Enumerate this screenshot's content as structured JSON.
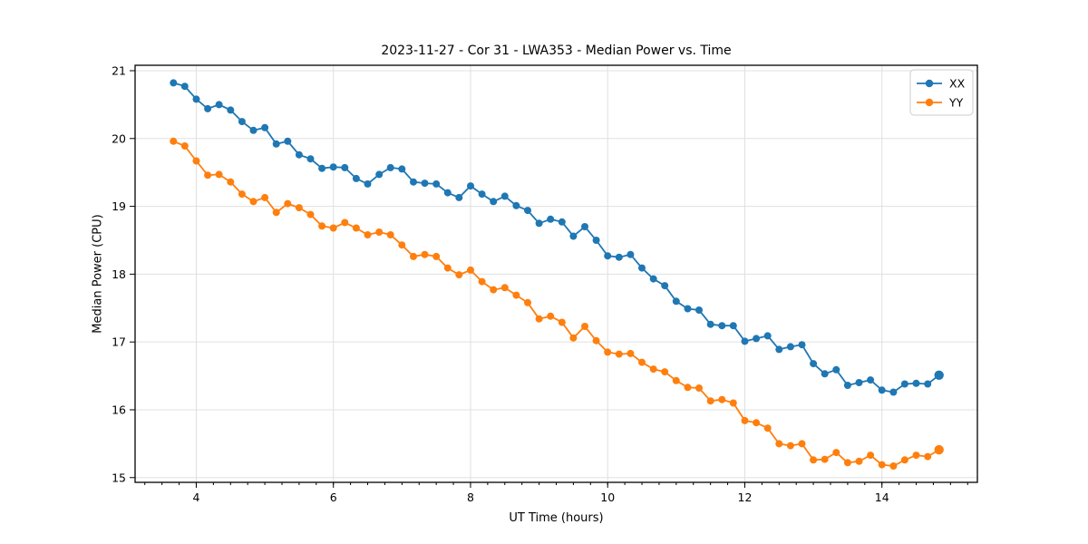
{
  "chart_data": {
    "type": "line",
    "title": "2023-11-27 - Cor 31 - LWA353 - Median Power vs. Time",
    "xlabel": "UT Time (hours)",
    "ylabel": "Median Power (CPU)",
    "xlim": [
      3.108,
      15.392
    ],
    "ylim": [
      14.93,
      21.08
    ],
    "x_major_ticks": [
      4,
      6,
      8,
      10,
      12,
      14
    ],
    "x_minor_step": 0.25,
    "y_major_ticks": [
      15,
      16,
      17,
      18,
      19,
      20,
      21
    ],
    "grid": true,
    "legend_position": "upper right",
    "legend_entries": [
      "XX",
      "YY"
    ],
    "x": [
      3.667,
      3.833,
      4,
      4.167,
      4.333,
      4.5,
      4.667,
      4.833,
      5,
      5.167,
      5.333,
      5.5,
      5.667,
      5.833,
      6,
      6.167,
      6.333,
      6.5,
      6.667,
      6.833,
      7,
      7.167,
      7.333,
      7.5,
      7.667,
      7.833,
      8,
      8.167,
      8.333,
      8.5,
      8.667,
      8.833,
      9,
      9.167,
      9.333,
      9.5,
      9.667,
      9.833,
      10,
      10.167,
      10.333,
      10.5,
      10.667,
      10.833,
      11,
      11.167,
      11.333,
      11.5,
      11.667,
      11.833,
      12,
      12.167,
      12.333,
      12.5,
      12.667,
      12.833,
      13,
      13.167,
      13.333,
      13.5,
      13.667,
      13.833,
      14,
      14.167,
      14.333,
      14.5,
      14.667,
      14.833
    ],
    "series": [
      {
        "name": "XX",
        "color": "#1f77b4",
        "values": [
          20.82,
          20.77,
          20.58,
          20.44,
          20.5,
          20.42,
          20.25,
          20.12,
          20.16,
          19.92,
          19.96,
          19.76,
          19.7,
          19.56,
          19.58,
          19.57,
          19.41,
          19.33,
          19.47,
          19.57,
          19.55,
          19.36,
          19.34,
          19.33,
          19.2,
          19.13,
          19.3,
          19.18,
          19.07,
          19.15,
          19.01,
          18.94,
          18.75,
          18.81,
          18.77,
          18.56,
          18.7,
          18.5,
          18.27,
          18.25,
          18.29,
          18.09,
          17.93,
          17.83,
          17.6,
          17.49,
          17.47,
          17.26,
          17.24,
          17.24,
          17.01,
          17.05,
          17.09,
          16.89,
          16.93,
          16.96,
          16.68,
          16.53,
          16.59,
          16.36,
          16.4,
          16.44,
          16.29,
          16.26,
          16.38,
          16.39,
          16.38,
          16.51
        ]
      },
      {
        "name": "YY",
        "color": "#ff7f0e",
        "values": [
          19.96,
          19.89,
          19.67,
          19.46,
          19.47,
          19.36,
          19.18,
          19.07,
          19.13,
          18.91,
          19.04,
          18.98,
          18.88,
          18.71,
          18.68,
          18.76,
          18.68,
          18.58,
          18.62,
          18.58,
          18.43,
          18.26,
          18.29,
          18.26,
          18.09,
          17.99,
          18.06,
          17.89,
          17.77,
          17.8,
          17.69,
          17.58,
          17.34,
          17.38,
          17.29,
          17.06,
          17.23,
          17.02,
          16.85,
          16.82,
          16.83,
          16.7,
          16.6,
          16.56,
          16.43,
          16.33,
          16.32,
          16.13,
          16.15,
          16.1,
          15.84,
          15.81,
          15.73,
          15.5,
          15.47,
          15.5,
          15.26,
          15.27,
          15.37,
          15.22,
          15.24,
          15.33,
          15.19,
          15.17,
          15.26,
          15.33,
          15.31,
          15.41
        ]
      }
    ],
    "colors": {
      "grid": "#e0e0e0",
      "spine": "#000000",
      "legend_border": "#cccccc",
      "background": "#ffffff"
    }
  }
}
